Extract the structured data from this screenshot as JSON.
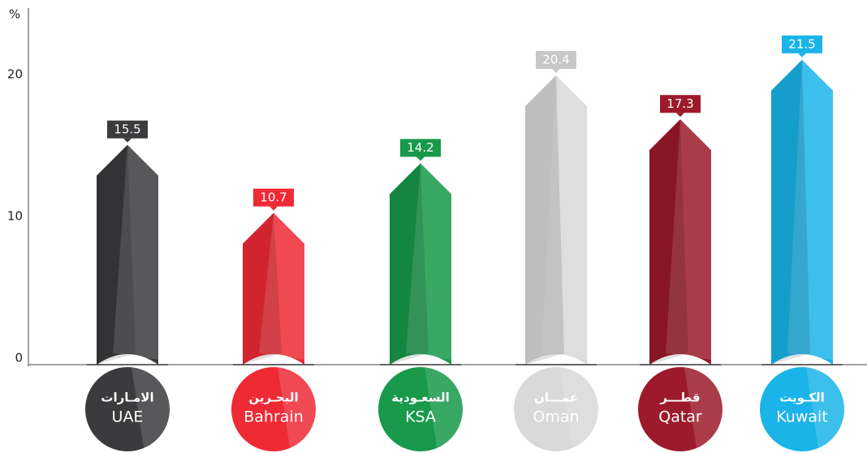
{
  "chart_data": {
    "type": "bar",
    "y_label": "%",
    "categories": [
      "UAE",
      "Bahrain",
      "KSA",
      "Oman",
      "Qatar",
      "Kuwait"
    ],
    "arabic_labels": [
      "الامـارات",
      "البحـرين",
      "السعـودية",
      "عمـــان",
      "قطـــر",
      "الكـويت"
    ],
    "values": [
      15.5,
      10.7,
      14.2,
      20.4,
      17.3,
      21.5
    ],
    "colors": [
      "#3b3a3c",
      "#ee2a35",
      "#18994b",
      "#d9d9d9",
      "#9c1a2b",
      "#1ab4e8"
    ],
    "ylim": [
      0,
      25
    ],
    "yticks": [
      0,
      10,
      20
    ]
  }
}
